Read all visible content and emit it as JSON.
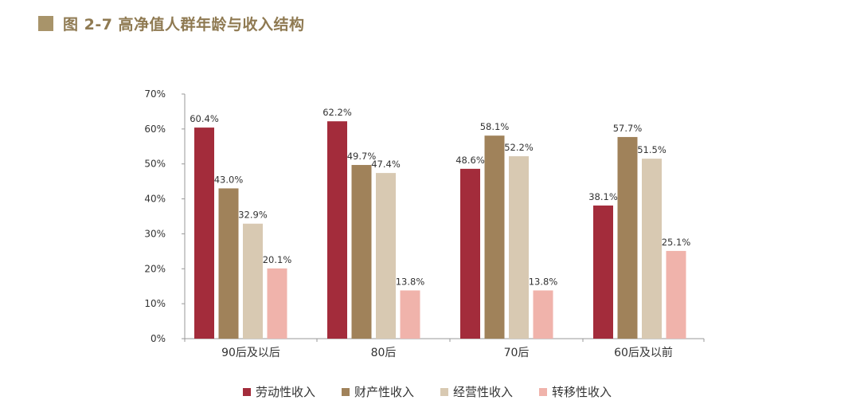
{
  "header": {
    "title": "图 2-7  高净值人群年龄与收入结构",
    "marker_color": "#a8946a"
  },
  "chart_data": {
    "type": "bar",
    "title": "高净值人群年龄与收入结构",
    "categories": [
      "90后及以后",
      "80后",
      "70后",
      "60后及以前"
    ],
    "series": [
      {
        "name": "劳动性收入",
        "color": "#a32c3b",
        "values": [
          60.4,
          62.2,
          48.6,
          38.1
        ]
      },
      {
        "name": "财产性收入",
        "color": "#a0825a",
        "values": [
          43.0,
          49.7,
          58.1,
          57.7
        ]
      },
      {
        "name": "经营性收入",
        "color": "#d8c9b2",
        "values": [
          32.9,
          47.4,
          52.2,
          51.5
        ]
      },
      {
        "name": "转移性收入",
        "color": "#f0b3ab",
        "values": [
          20.1,
          13.8,
          13.8,
          25.1
        ]
      }
    ],
    "ylim": [
      0,
      70
    ],
    "yticks": [
      0,
      10,
      20,
      30,
      40,
      50,
      60,
      70
    ],
    "ytick_labels": [
      "0%",
      "10%",
      "20%",
      "30%",
      "40%",
      "50%",
      "60%",
      "70%"
    ],
    "value_labels": [
      [
        "60.4%",
        "62.2%",
        "48.6%",
        "38.1%"
      ],
      [
        "43.0%",
        "49.7%",
        "58.1%",
        "57.7%"
      ],
      [
        "32.9%",
        "47.4%",
        "52.2%",
        "51.5%"
      ],
      [
        "20.1%",
        "13.8%",
        "13.8%",
        "25.1%"
      ]
    ],
    "xlabel": "",
    "ylabel": "",
    "grid": false,
    "legend": "bottom"
  }
}
